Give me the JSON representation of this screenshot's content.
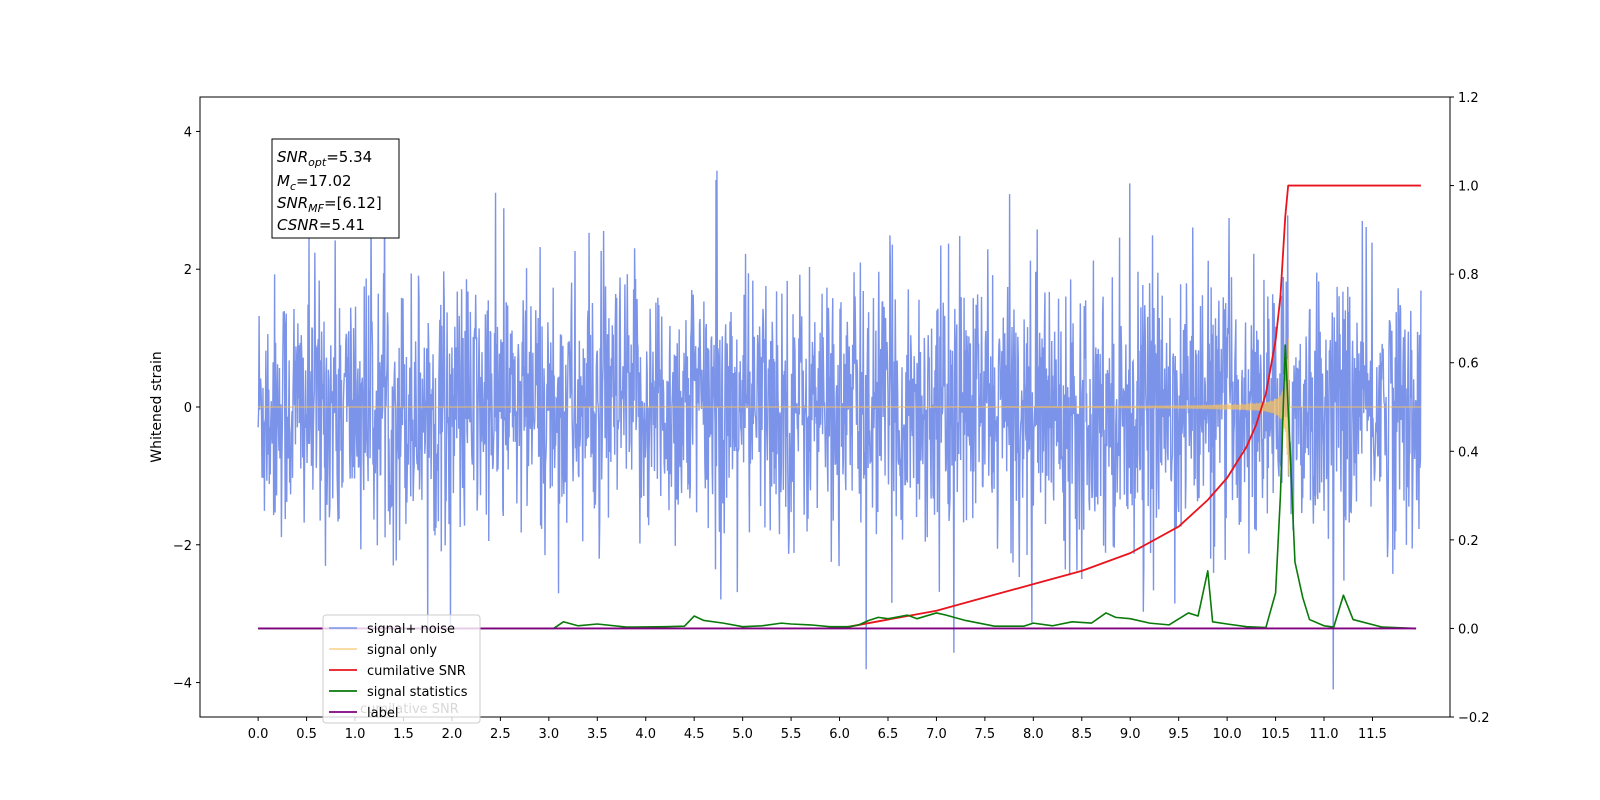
{
  "chart_data": {
    "type": "line",
    "ylabel": "Whitened strain",
    "xlabel": "",
    "title": "",
    "xlim": [
      -0.6,
      12.3
    ],
    "ylim_left": [
      -4.5,
      4.5
    ],
    "ylim_right": [
      -0.2,
      1.2
    ],
    "x_ticks": [
      "0.0",
      "0.5",
      "1.0",
      "1.5",
      "2.0",
      "2.5",
      "3.0",
      "3.5",
      "4.0",
      "4.5",
      "5.0",
      "5.5",
      "6.0",
      "6.5",
      "7.0",
      "7.5",
      "8.0",
      "8.5",
      "9.0",
      "9.5",
      "10.0",
      "10.5",
      "11.0",
      "11.5"
    ],
    "y_left_ticks": [
      "4",
      "2",
      "0",
      "−2",
      "−4"
    ],
    "y_right_ticks": [
      "1.2",
      "1.0",
      "0.8",
      "0.6",
      "0.4",
      "0.2",
      "0.0",
      "−0.2"
    ],
    "grid": false,
    "legend_position": "bottom-left",
    "annotation": {
      "snr_opt": "=5.34",
      "mc": "=17.02",
      "snr_mf": "=[6.12]",
      "csnr": "=5.41"
    },
    "series": [
      {
        "name": "signal+ noise",
        "color": "#7b93e8",
        "axis": "left",
        "description_values": "noise amplitude ~1.5, peaks up to 4.08 and down to -4.1",
        "x_range": [
          0.0,
          12.0
        ]
      },
      {
        "name": "signal only",
        "color": "#f5c060",
        "axis": "left",
        "x_range": [
          0.0,
          12.0
        ],
        "chirp_peak_x": 10.62,
        "chirp_peak_amplitude": 1.0
      },
      {
        "name": "cumilative SNR",
        "color": "#e8141e",
        "axis": "right",
        "x": [
          6.0,
          6.5,
          7.0,
          7.5,
          8.0,
          8.5,
          9.0,
          9.5,
          9.8,
          10.0,
          10.2,
          10.3,
          10.4,
          10.5,
          10.55,
          10.6,
          10.63,
          10.65,
          11.0,
          11.5,
          12.0
        ],
        "values": [
          0.0,
          0.02,
          0.04,
          0.07,
          0.1,
          0.13,
          0.17,
          0.23,
          0.29,
          0.34,
          0.41,
          0.46,
          0.53,
          0.65,
          0.75,
          0.93,
          1.0,
          1.0,
          1.0,
          1.0,
          1.0
        ]
      },
      {
        "name": "signal statistics",
        "color": "#0a7a0a",
        "axis": "right",
        "x": [
          0.0,
          2.9,
          3.05,
          3.15,
          3.3,
          3.5,
          3.8,
          4.2,
          4.4,
          4.5,
          4.6,
          4.8,
          5.0,
          5.2,
          5.4,
          5.5,
          5.7,
          5.9,
          6.1,
          6.2,
          6.3,
          6.4,
          6.5,
          6.7,
          6.8,
          7.0,
          7.1,
          7.3,
          7.6,
          7.9,
          8.0,
          8.2,
          8.4,
          8.6,
          8.75,
          8.85,
          9.0,
          9.2,
          9.4,
          9.6,
          9.7,
          9.8,
          9.85,
          10.0,
          10.2,
          10.4,
          10.5,
          10.55,
          10.6,
          10.65,
          10.7,
          10.78,
          10.85,
          11.0,
          11.1,
          11.2,
          11.3,
          11.6,
          11.95
        ],
        "values": [
          0.0,
          0.0,
          0.0,
          0.015,
          0.006,
          0.01,
          0.003,
          0.004,
          0.005,
          0.028,
          0.018,
          0.012,
          0.004,
          0.006,
          0.012,
          0.01,
          0.008,
          0.004,
          0.004,
          0.008,
          0.018,
          0.025,
          0.022,
          0.03,
          0.022,
          0.035,
          0.03,
          0.018,
          0.005,
          0.005,
          0.012,
          0.006,
          0.015,
          0.012,
          0.035,
          0.025,
          0.022,
          0.012,
          0.008,
          0.035,
          0.028,
          0.13,
          0.015,
          0.01,
          0.004,
          0.002,
          0.08,
          0.3,
          0.64,
          0.4,
          0.15,
          0.07,
          0.02,
          0.006,
          0.003,
          0.075,
          0.02,
          0.003,
          0.0
        ]
      },
      {
        "name": "label",
        "color": "#800080",
        "axis": "right",
        "x": [
          0.0,
          11.95
        ],
        "values": [
          0.0,
          0.0
        ]
      }
    ],
    "legend_overlap_text": "cumilative SNR"
  }
}
